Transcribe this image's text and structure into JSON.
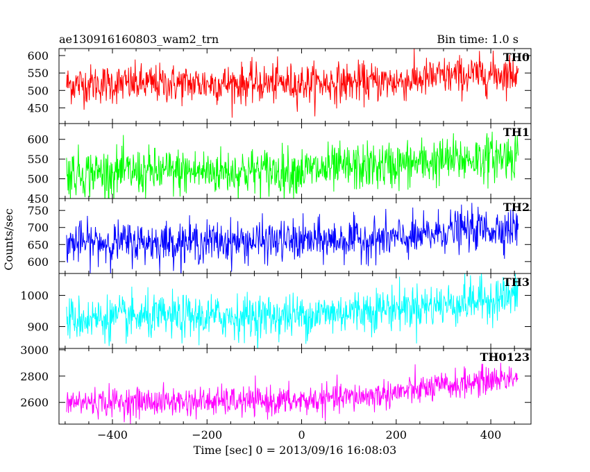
{
  "header": {
    "title": "ae130916160803_wam2_trn",
    "bin_time": "Bin time: 1.0 s"
  },
  "colors": {
    "TH0": "#ff0000",
    "TH1": "#00ff00",
    "TH2": "#0000ff",
    "TH3": "#00ffff",
    "TH0123": "#ff00ff",
    "axes": "#000000",
    "background": "#ffffff"
  },
  "chart_data": {
    "type": "line",
    "title": "ae130916160803_wam2_trn",
    "subtitle": "Bin time: 1.0 s",
    "xlabel": "Time [sec] 0 = 2013/09/16 16:08:03",
    "ylabel": "Counts/sec",
    "xlim": [
      -513,
      485
    ],
    "x_ticks": [
      -400,
      -200,
      0,
      200,
      400
    ],
    "x_tick_labels": [
      "−400",
      "−200",
      "0",
      "200",
      "400"
    ],
    "x_range_of_data": [
      -497,
      458
    ],
    "bin_time_s": 1.0,
    "grid": false,
    "panels": [
      {
        "name": "TH0",
        "ylim": [
          405,
          620
        ],
        "yticks": [
          450,
          500,
          550,
          600
        ],
        "ytick_labels": [
          "450",
          "500",
          "550",
          "600"
        ],
        "trend": [
          [
            -497,
            518
          ],
          [
            0,
            520
          ],
          [
            200,
            525
          ],
          [
            300,
            540
          ],
          [
            458,
            550
          ]
        ],
        "noise_sd": 28
      },
      {
        "name": "TH1",
        "ylim": [
          450,
          640
        ],
        "yticks": [
          450,
          500,
          550,
          600
        ],
        "ytick_labels": [
          "450",
          "500",
          "550",
          "600"
        ],
        "trend": [
          [
            -497,
            515
          ],
          [
            0,
            520
          ],
          [
            200,
            535
          ],
          [
            300,
            545
          ],
          [
            458,
            560
          ]
        ],
        "noise_sd": 30
      },
      {
        "name": "TH2",
        "ylim": [
          565,
          785
        ],
        "yticks": [
          600,
          650,
          700,
          750
        ],
        "ytick_labels": [
          "600",
          "650",
          "700",
          "750"
        ],
        "trend": [
          [
            -497,
            655
          ],
          [
            0,
            660
          ],
          [
            250,
            670
          ],
          [
            300,
            690
          ],
          [
            458,
            700
          ]
        ],
        "noise_sd": 30
      },
      {
        "name": "TH3",
        "ylim": [
          830,
          1070
        ],
        "yticks": [
          900,
          1000
        ],
        "ytick_labels": [
          "900",
          "1000"
        ],
        "trend": [
          [
            -497,
            925
          ],
          [
            0,
            935
          ],
          [
            150,
            955
          ],
          [
            300,
            970
          ],
          [
            458,
            1000
          ]
        ],
        "noise_sd": 35
      },
      {
        "name": "TH0123",
        "ylim": [
          2435,
          3010
        ],
        "yticks": [
          2600,
          2800,
          3000
        ],
        "ytick_labels": [
          "2600",
          "2800",
          "3000"
        ],
        "trend": [
          [
            -497,
            2600
          ],
          [
            0,
            2610
          ],
          [
            150,
            2650
          ],
          [
            300,
            2720
          ],
          [
            458,
            2800
          ]
        ],
        "noise_sd": 55
      }
    ]
  }
}
